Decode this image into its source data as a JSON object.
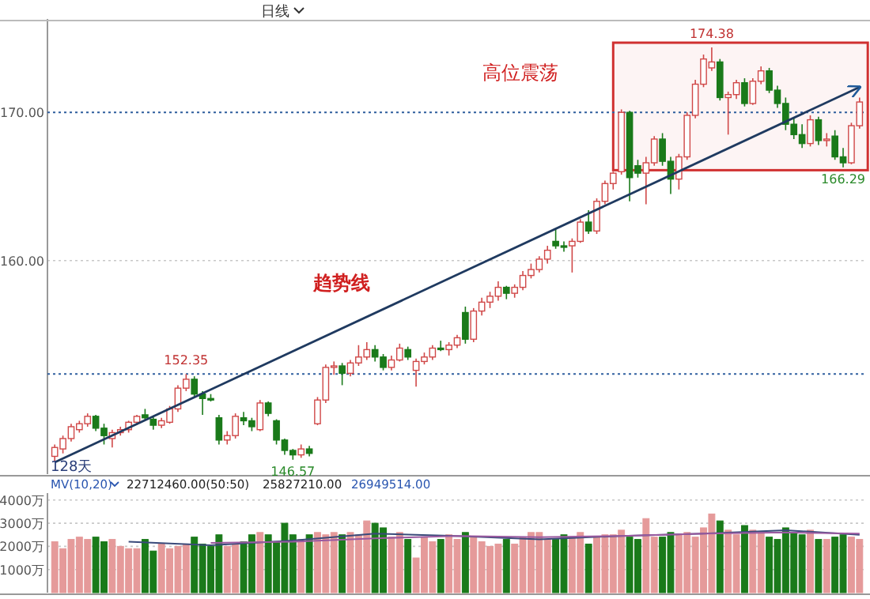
{
  "chart_data": [
    {
      "type": "candlestick",
      "subtitle": "日线",
      "categories": [
        null,
        null,
        null,
        null,
        null,
        null,
        null,
        null,
        null,
        null,
        null,
        null,
        null,
        null,
        null,
        null,
        null,
        null,
        null,
        null,
        null,
        null,
        null,
        null,
        null,
        null,
        null,
        null,
        null,
        null,
        null,
        null,
        null,
        null,
        null,
        null,
        null,
        null,
        null,
        null,
        null,
        null,
        null,
        null,
        null,
        null,
        null,
        null,
        null,
        null,
        null,
        null,
        null,
        null,
        null,
        null,
        null,
        null,
        null,
        null,
        null,
        null,
        null,
        null,
        null,
        null,
        null,
        null,
        null,
        null,
        null,
        null,
        null,
        null,
        null,
        null,
        null,
        null,
        null,
        null,
        null,
        null,
        null,
        null,
        null,
        null,
        null,
        null,
        null,
        null,
        null,
        null,
        null,
        null,
        null,
        null,
        null,
        null,
        null
      ],
      "ohlc": [
        [
          146.8,
          147.6,
          146.5,
          147.4
        ],
        [
          147.3,
          148.2,
          147.0,
          148.0
        ],
        [
          148.0,
          149.0,
          147.8,
          148.8
        ],
        [
          148.6,
          149.2,
          148.4,
          149.0
        ],
        [
          149.0,
          149.7,
          148.8,
          149.5
        ],
        [
          149.5,
          149.6,
          148.5,
          148.7
        ],
        [
          148.7,
          149.0,
          147.6,
          148.2
        ],
        [
          148.0,
          148.6,
          147.4,
          148.4
        ],
        [
          148.4,
          148.8,
          148.2,
          148.6
        ],
        [
          148.6,
          149.2,
          148.4,
          149.1
        ],
        [
          149.1,
          149.6,
          148.9,
          149.5
        ],
        [
          149.6,
          150.0,
          149.2,
          149.4
        ],
        [
          149.3,
          149.5,
          148.6,
          148.9
        ],
        [
          148.9,
          149.4,
          148.7,
          149.2
        ],
        [
          149.1,
          150.2,
          149.0,
          150.0
        ],
        [
          150.0,
          151.6,
          149.8,
          151.4
        ],
        [
          151.4,
          152.35,
          151.2,
          152.0
        ],
        [
          152.0,
          152.2,
          150.8,
          151.0
        ],
        [
          151.0,
          151.2,
          149.6,
          150.7
        ],
        [
          150.7,
          151.0,
          150.5,
          150.6
        ],
        [
          149.4,
          149.6,
          147.6,
          147.9
        ],
        [
          147.9,
          148.5,
          147.6,
          148.2
        ],
        [
          148.2,
          149.7,
          148.0,
          149.5
        ],
        [
          149.4,
          149.8,
          148.9,
          149.2
        ],
        [
          149.2,
          149.4,
          148.5,
          148.8
        ],
        [
          148.6,
          150.6,
          148.5,
          150.4
        ],
        [
          150.4,
          150.5,
          149.5,
          149.7
        ],
        [
          149.2,
          149.3,
          147.6,
          147.9
        ],
        [
          147.9,
          148.0,
          146.9,
          147.2
        ],
        [
          147.2,
          147.3,
          146.57,
          146.9
        ],
        [
          146.9,
          147.6,
          146.7,
          147.3
        ],
        [
          147.3,
          147.5,
          146.8,
          147.0
        ],
        [
          149.0,
          150.8,
          148.9,
          150.6
        ],
        [
          150.6,
          153.0,
          150.4,
          152.8
        ],
        [
          152.8,
          153.2,
          152.3,
          152.9
        ],
        [
          152.9,
          153.1,
          151.6,
          152.4
        ],
        [
          152.4,
          153.3,
          152.2,
          153.1
        ],
        [
          153.1,
          154.3,
          152.9,
          153.5
        ],
        [
          153.5,
          154.5,
          153.3,
          154.0
        ],
        [
          154.0,
          154.3,
          153.2,
          153.5
        ],
        [
          153.5,
          153.7,
          152.6,
          152.8
        ],
        [
          152.8,
          153.6,
          152.6,
          153.3
        ],
        [
          153.3,
          154.4,
          153.2,
          154.1
        ],
        [
          154.0,
          154.2,
          153.3,
          153.5
        ],
        [
          152.6,
          153.4,
          151.5,
          153.2
        ],
        [
          153.2,
          153.8,
          153.0,
          153.5
        ],
        [
          153.5,
          154.3,
          153.3,
          154.1
        ],
        [
          154.1,
          154.6,
          153.9,
          154.0
        ],
        [
          154.0,
          154.5,
          153.6,
          154.3
        ],
        [
          154.3,
          155.0,
          154.1,
          154.8
        ],
        [
          156.5,
          156.9,
          154.4,
          154.7
        ],
        [
          154.7,
          156.8,
          154.5,
          156.6
        ],
        [
          156.6,
          157.5,
          156.3,
          157.2
        ],
        [
          157.2,
          157.9,
          156.8,
          157.6
        ],
        [
          157.6,
          158.6,
          157.3,
          158.2
        ],
        [
          158.2,
          158.3,
          157.4,
          157.8
        ],
        [
          157.8,
          158.4,
          157.5,
          158.2
        ],
        [
          158.2,
          159.3,
          158.0,
          159.0
        ],
        [
          159.0,
          159.8,
          158.8,
          159.4
        ],
        [
          159.4,
          160.3,
          159.2,
          160.1
        ],
        [
          160.1,
          161.0,
          159.8,
          160.7
        ],
        [
          161.3,
          162.2,
          160.8,
          161.0
        ],
        [
          161.0,
          161.3,
          160.6,
          160.9
        ],
        [
          161.0,
          161.5,
          159.2,
          161.3
        ],
        [
          161.3,
          162.8,
          161.2,
          162.6
        ],
        [
          162.6,
          163.4,
          161.8,
          162.0
        ],
        [
          162.0,
          164.2,
          161.8,
          164.0
        ],
        [
          164.0,
          165.4,
          163.8,
          165.2
        ],
        [
          165.2,
          166.0,
          164.8,
          165.9
        ],
        [
          166.0,
          170.2,
          165.8,
          170.0
        ],
        [
          170.0,
          170.1,
          164.0,
          165.6
        ],
        [
          166.4,
          166.8,
          165.6,
          165.9
        ],
        [
          165.9,
          167.0,
          163.8,
          166.6
        ],
        [
          166.6,
          168.4,
          166.4,
          168.2
        ],
        [
          168.2,
          168.6,
          166.4,
          166.7
        ],
        [
          166.7,
          167.0,
          164.5,
          165.5
        ],
        [
          165.5,
          167.2,
          164.8,
          167.0
        ],
        [
          167.0,
          170.0,
          166.8,
          169.8
        ],
        [
          169.8,
          172.2,
          169.6,
          171.9
        ],
        [
          171.9,
          173.9,
          171.7,
          173.6
        ],
        [
          173.0,
          174.38,
          172.8,
          173.4
        ],
        [
          173.4,
          173.6,
          170.8,
          171.0
        ],
        [
          171.0,
          171.4,
          168.5,
          171.2
        ],
        [
          171.2,
          172.2,
          170.9,
          172.0
        ],
        [
          172.0,
          172.3,
          170.4,
          170.6
        ],
        [
          170.6,
          172.3,
          170.5,
          172.1
        ],
        [
          172.1,
          173.1,
          171.9,
          172.8
        ],
        [
          172.8,
          173.0,
          171.3,
          171.5
        ],
        [
          171.5,
          171.8,
          170.3,
          170.6
        ],
        [
          170.6,
          171.0,
          168.8,
          169.2
        ],
        [
          169.2,
          169.6,
          168.2,
          168.5
        ],
        [
          168.5,
          169.2,
          167.6,
          167.9
        ],
        [
          167.9,
          169.8,
          167.7,
          169.5
        ],
        [
          169.5,
          169.7,
          167.8,
          168.1
        ],
        [
          168.1,
          168.6,
          167.7,
          168.2
        ],
        [
          168.4,
          168.8,
          166.8,
          167.0
        ],
        [
          167.0,
          167.6,
          166.29,
          166.6
        ],
        [
          166.6,
          169.3,
          166.5,
          169.1
        ],
        [
          169.1,
          171.0,
          168.9,
          170.7
        ]
      ],
      "series": [
        {
          "type": "line",
          "values": [
            146.4,
            null,
            null,
            null,
            null,
            null,
            null,
            null,
            null,
            null,
            null,
            null,
            null,
            null,
            null,
            null,
            null,
            null,
            null,
            null,
            null,
            null,
            null,
            null,
            null,
            null,
            null,
            null,
            null,
            null,
            null,
            null,
            null,
            null,
            null,
            null,
            null,
            null,
            null,
            null,
            null,
            null,
            null,
            null,
            null,
            null,
            null,
            null,
            null,
            null,
            null,
            null,
            null,
            null,
            null,
            null,
            null,
            null,
            null,
            null,
            null,
            null,
            null,
            null,
            null,
            null,
            null,
            null,
            null,
            null,
            null,
            null,
            null,
            null,
            null,
            null,
            null,
            null,
            null,
            null,
            null,
            null,
            null,
            null,
            null,
            null,
            null,
            null,
            null,
            null,
            null,
            null,
            null,
            null,
            null,
            null,
            null,
            null,
            171.7
          ],
          "color": "#1f3a60"
        }
      ],
      "ylim": [
        145.6,
        176.3
      ],
      "yticks": [
        {
          "value": 160,
          "label": "160.00"
        },
        {
          "value": 170,
          "label": "170.00"
        }
      ],
      "grid": "y",
      "ref_lines": [
        {
          "axis": "y",
          "value": 152.35,
          "color": "#3060a0",
          "line_style": "dotted"
        },
        {
          "axis": "y",
          "value": 170,
          "color": "#3060a0",
          "line_style": "dotted"
        }
      ],
      "bands": [
        {
          "axis": "y",
          "from": 166.1,
          "to": 174.7,
          "color": "#d03030"
        }
      ],
      "annotations": [
        "128天",
        "趋势线",
        "高位震荡",
        {
          "text": "152.35",
          "y": 152.35
        },
        {
          "text": "146.57",
          "y": 146.57
        },
        {
          "text": "174.38",
          "y": 174.38
        },
        {
          "text": "166.29",
          "y": 166.29
        }
      ]
    },
    {
      "type": "bar",
      "categories": [
        null,
        null,
        null,
        null,
        null,
        null,
        null,
        null,
        null,
        null,
        null,
        null,
        null,
        null,
        null,
        null,
        null,
        null,
        null,
        null,
        null,
        null,
        null,
        null,
        null,
        null,
        null,
        null,
        null,
        null,
        null,
        null,
        null,
        null,
        null,
        null,
        null,
        null,
        null,
        null,
        null,
        null,
        null,
        null,
        null,
        null,
        null,
        null,
        null,
        null,
        null,
        null,
        null,
        null,
        null,
        null,
        null,
        null,
        null,
        null,
        null,
        null,
        null,
        null,
        null,
        null,
        null,
        null,
        null,
        null,
        null,
        null,
        null,
        null,
        null,
        null,
        null,
        null,
        null,
        null,
        null,
        null,
        null,
        null,
        null,
        null,
        null,
        null,
        null,
        null,
        null,
        null,
        null,
        null,
        null,
        null,
        null,
        null,
        null
      ],
      "series": [
        {
          "values": [
            2200,
            1900,
            2300,
            2400,
            2300,
            2400,
            2200,
            2300,
            2000,
            1900,
            1900,
            2300,
            1800,
            2100,
            1900,
            2000,
            2100,
            2400,
            2100,
            2000,
            2500,
            2000,
            2100,
            2200,
            2500,
            2600,
            2500,
            2200,
            3000,
            2500,
            2300,
            2500,
            2600,
            2500,
            2600,
            2500,
            2600,
            2500,
            3100,
            3000,
            2800,
            2400,
            2600,
            2300,
            1500,
            2400,
            2200,
            2300,
            2500,
            2300,
            2600,
            2400,
            2200,
            2000,
            2100,
            2300,
            2100,
            2400,
            2600,
            2600,
            2300,
            2300,
            2500,
            2400,
            2600,
            2100,
            2400,
            2500,
            2500,
            2700,
            2400,
            2300,
            3200,
            2400,
            2400,
            2600,
            2500,
            2600,
            2400,
            2800,
            3400,
            3100,
            2700,
            2500,
            2900,
            2700,
            2600,
            2400,
            2300,
            2800,
            2600,
            2500,
            2700,
            2300,
            2300,
            2400,
            2500,
            2400,
            2300
          ],
          "colors": [
            "#e59a9a",
            "#e59a9a",
            "#e59a9a",
            "#e59a9a",
            "#e59a9a",
            "#1a7a1a",
            "#1a7a1a",
            "#e59a9a",
            "#e59a9a",
            "#e59a9a",
            "#e59a9a",
            "#1a7a1a",
            "#1a7a1a",
            "#e59a9a",
            "#e59a9a",
            "#e59a9a",
            "#e59a9a",
            "#1a7a1a",
            "#1a7a1a",
            "#1a7a1a",
            "#1a7a1a",
            "#e59a9a",
            "#e59a9a",
            "#1a7a1a",
            "#1a7a1a",
            "#e59a9a",
            "#1a7a1a",
            "#1a7a1a",
            "#1a7a1a",
            "#1a7a1a",
            "#e59a9a",
            "#1a7a1a",
            "#e59a9a",
            "#e59a9a",
            "#e59a9a",
            "#1a7a1a",
            "#e59a9a",
            "#e59a9a",
            "#e59a9a",
            "#1a7a1a",
            "#1a7a1a",
            "#e59a9a",
            "#e59a9a",
            "#1a7a1a",
            "#e59a9a",
            "#e59a9a",
            "#e59a9a",
            "#1a7a1a",
            "#e59a9a",
            "#e59a9a",
            "#1a7a1a",
            "#e59a9a",
            "#e59a9a",
            "#e59a9a",
            "#e59a9a",
            "#1a7a1a",
            "#e59a9a",
            "#e59a9a",
            "#e59a9a",
            "#e59a9a",
            "#e59a9a",
            "#1a7a1a",
            "#1a7a1a",
            "#e59a9a",
            "#e59a9a",
            "#1a7a1a",
            "#e59a9a",
            "#e59a9a",
            "#e59a9a",
            "#e59a9a",
            "#1a7a1a",
            "#1a7a1a",
            "#e59a9a",
            "#e59a9a",
            "#1a7a1a",
            "#1a7a1a",
            "#e59a9a",
            "#e59a9a",
            "#e59a9a",
            "#e59a9a",
            "#e59a9a",
            "#1a7a1a",
            "#e59a9a",
            "#e59a9a",
            "#1a7a1a",
            "#e59a9a",
            "#e59a9a",
            "#1a7a1a",
            "#1a7a1a",
            "#1a7a1a",
            "#1a7a1a",
            "#1a7a1a",
            "#e59a9a",
            "#1a7a1a",
            "#e59a9a",
            "#1a7a1a",
            "#1a7a1a",
            "#e59a9a",
            "#e59a9a"
          ]
        },
        {
          "type": "line",
          "values": [
            null,
            null,
            null,
            null,
            null,
            null,
            null,
            null,
            null,
            2200,
            null,
            null,
            null,
            null,
            null,
            null,
            null,
            null,
            null,
            2050,
            null,
            null,
            null,
            null,
            null,
            null,
            null,
            null,
            null,
            2250,
            null,
            null,
            null,
            null,
            null,
            null,
            null,
            null,
            null,
            2550,
            null,
            null,
            null,
            null,
            null,
            null,
            null,
            null,
            null,
            2450,
            null,
            null,
            null,
            null,
            null,
            null,
            null,
            null,
            null,
            2300,
            null,
            null,
            null,
            null,
            null,
            null,
            null,
            null,
            null,
            2450,
            null,
            null,
            null,
            null,
            null,
            null,
            null,
            null,
            null,
            2550,
            null,
            null,
            null,
            null,
            null,
            null,
            null,
            null,
            null,
            2700,
            null,
            null,
            null,
            null,
            null,
            null,
            null,
            null,
            2500
          ],
          "color": "#3a4a7a"
        },
        {
          "type": "line",
          "values": [
            null,
            null,
            null,
            null,
            null,
            null,
            null,
            null,
            null,
            null,
            null,
            null,
            null,
            null,
            null,
            null,
            null,
            null,
            null,
            2150,
            null,
            null,
            null,
            null,
            null,
            null,
            null,
            null,
            null,
            2200,
            null,
            null,
            null,
            null,
            null,
            null,
            null,
            null,
            null,
            2350,
            null,
            null,
            null,
            null,
            null,
            null,
            null,
            null,
            null,
            2450,
            null,
            null,
            null,
            null,
            null,
            null,
            null,
            null,
            null,
            2400,
            null,
            null,
            null,
            null,
            null,
            null,
            null,
            null,
            null,
            2450,
            null,
            null,
            null,
            null,
            null,
            null,
            null,
            null,
            null,
            2550,
            null,
            null,
            null,
            null,
            null,
            null,
            null,
            null,
            null,
            2600,
            null,
            null,
            null,
            null,
            null,
            null,
            null,
            null,
            2550
          ],
          "color": "#9a5aa0"
        }
      ],
      "ylim": [
        0,
        4300
      ],
      "yticks": [
        {
          "value": 1000,
          "label": "1000万"
        },
        {
          "value": 2000,
          "label": "2000万"
        },
        {
          "value": 3000,
          "label": "3000万"
        },
        {
          "value": 4000,
          "label": "4000万"
        }
      ],
      "grid": "y",
      "annotations": [
        "MV(10,20)",
        "22712460.00(50:50)",
        "25827210.00",
        "26949514.00"
      ]
    }
  ]
}
